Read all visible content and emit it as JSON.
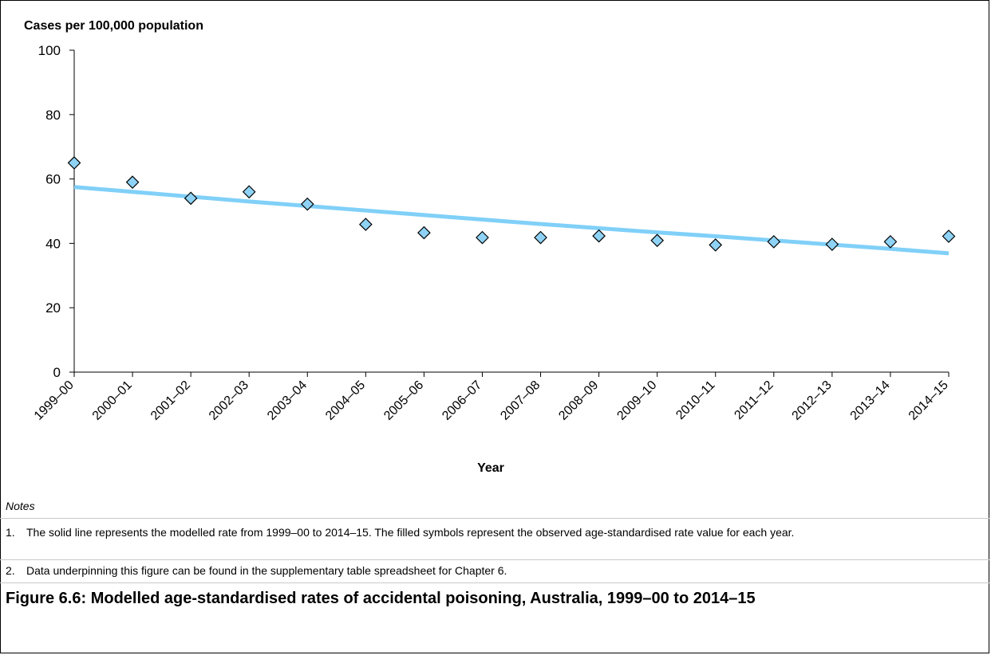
{
  "chart_data": {
    "type": "scatter",
    "ylabel": "Cases per 100,000 population",
    "xlabel": "Year",
    "ylim": [
      0,
      100
    ],
    "yticks": [
      0,
      20,
      40,
      60,
      80,
      100
    ],
    "categories": [
      "1999–00",
      "2000–01",
      "2001–02",
      "2002–03",
      "2003–04",
      "2004–05",
      "2005–06",
      "2006–07",
      "2007–08",
      "2008–09",
      "2009–10",
      "2010–11",
      "2011–12",
      "2012–13",
      "2013–14",
      "2014–15"
    ],
    "series": [
      {
        "type": "scatter",
        "marker": "diamond",
        "color": "#8ed3f5",
        "values": [
          65.0,
          59.0,
          54.0,
          56.0,
          52.2,
          45.9,
          43.3,
          41.8,
          41.8,
          42.3,
          40.9,
          39.5,
          40.5,
          39.7,
          40.5,
          42.2
        ]
      },
      {
        "type": "line",
        "color": "#80d0f8",
        "values": [
          57.5,
          56.0,
          54.5,
          53.0,
          51.6,
          50.2,
          48.8,
          47.4,
          46.0,
          44.7,
          43.4,
          42.2,
          40.9,
          39.6,
          38.3,
          36.9
        ]
      }
    ],
    "grid": false,
    "legend": "none"
  },
  "notes": {
    "heading": "Notes",
    "items": [
      {
        "number": "1.",
        "text": "The solid line represents the modelled rate from 1999–00 to 2014–15. The filled symbols represent the observed age-standardised rate value for each year."
      },
      {
        "number": "2.",
        "text": "Data underpinning this figure can be found in the supplementary table spreadsheet for Chapter 6."
      }
    ]
  },
  "caption": "Figure 6.6: Modelled age-standardised rates of accidental poisoning, Australia, 1999–00 to 2014–15"
}
